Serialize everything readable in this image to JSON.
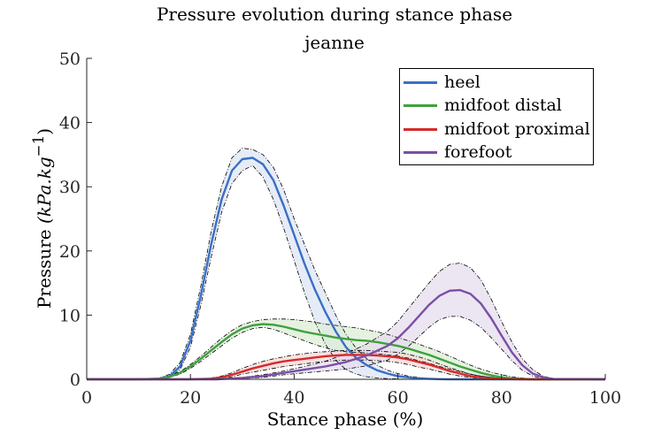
{
  "chart_data": {
    "type": "line",
    "title": "Pressure evolution during stance phase",
    "subtitle": "jeanne",
    "xlabel": "Stance phase (%)",
    "ylabel_text": "Pressure ",
    "ylabel_unit": "(kPa.kg",
    "ylabel_exp": "−1",
    "ylabel_close": ")",
    "xlim": [
      0,
      100
    ],
    "ylim": [
      0,
      50
    ],
    "xticks": [
      0,
      20,
      40,
      60,
      80,
      100
    ],
    "yticks": [
      0,
      10,
      20,
      30,
      40,
      50
    ],
    "grid": false,
    "legend_position": "top-right",
    "band_style": "shaded band with dash-dot bounds",
    "series": [
      {
        "name": "heel",
        "color": "#3a6fc4",
        "fill": "#dde6f4",
        "x": [
          0,
          10,
          14,
          16,
          18,
          20,
          22,
          24,
          26,
          28,
          30,
          32,
          34,
          36,
          38,
          40,
          42,
          44,
          46,
          48,
          50,
          52,
          54,
          56,
          58,
          60,
          62,
          64,
          66,
          68,
          70,
          75,
          100
        ],
        "mean": [
          0,
          0,
          0.1,
          0.5,
          2,
          6,
          13,
          21,
          28,
          32.5,
          34.3,
          34.5,
          33.5,
          31,
          27,
          22.5,
          18,
          14,
          10.5,
          7.5,
          5,
          3.3,
          2.2,
          1.4,
          0.9,
          0.5,
          0.3,
          0.15,
          0.08,
          0.03,
          0,
          0,
          0
        ],
        "upper": [
          0,
          0,
          0.2,
          0.8,
          2.6,
          7,
          14.5,
          23,
          30,
          34.5,
          36,
          35.8,
          35,
          33,
          29.5,
          25,
          21,
          17,
          13.5,
          10,
          7,
          4.8,
          3.2,
          2.2,
          1.4,
          0.9,
          0.5,
          0.3,
          0.15,
          0.08,
          0.03,
          0,
          0
        ],
        "lower": [
          0,
          0,
          0,
          0.3,
          1.5,
          5,
          11.5,
          19,
          26,
          30.5,
          32.5,
          33.3,
          31.5,
          28,
          23.5,
          18.5,
          13.5,
          9,
          5.5,
          3,
          1.5,
          0.8,
          0.4,
          0.2,
          0.1,
          0.05,
          0,
          0,
          0,
          0,
          0,
          0,
          0
        ]
      },
      {
        "name": "midfoot distal",
        "color": "#3fa03f",
        "fill": "#dcedd6",
        "x": [
          0,
          10,
          14,
          16,
          18,
          20,
          22,
          24,
          26,
          28,
          30,
          32,
          34,
          36,
          38,
          40,
          42,
          44,
          46,
          48,
          50,
          52,
          54,
          56,
          58,
          60,
          62,
          64,
          66,
          68,
          70,
          72,
          74,
          76,
          78,
          80,
          82,
          84,
          86,
          90,
          100
        ],
        "mean": [
          0,
          0,
          0.1,
          0.4,
          1,
          2,
          3.2,
          4.5,
          5.8,
          7,
          7.9,
          8.4,
          8.6,
          8.5,
          8.2,
          7.8,
          7.4,
          7.1,
          6.8,
          6.5,
          6.3,
          6.1,
          6,
          5.8,
          5.5,
          5.2,
          4.8,
          4.3,
          3.8,
          3.2,
          2.6,
          2,
          1.5,
          1,
          0.6,
          0.3,
          0.15,
          0.05,
          0,
          0,
          0
        ],
        "upper": [
          0,
          0,
          0.15,
          0.5,
          1.2,
          2.3,
          3.6,
          5,
          6.4,
          7.6,
          8.5,
          9,
          9.3,
          9.4,
          9.4,
          9.3,
          9.1,
          8.9,
          8.6,
          8.4,
          8.2,
          8,
          7.7,
          7.4,
          7,
          6.5,
          6,
          5.5,
          4.9,
          4.3,
          3.6,
          2.9,
          2.2,
          1.6,
          1.1,
          0.7,
          0.4,
          0.2,
          0.1,
          0,
          0
        ],
        "lower": [
          0,
          0,
          0.05,
          0.3,
          0.8,
          1.7,
          2.8,
          4,
          5.2,
          6.4,
          7.3,
          7.9,
          8.1,
          7.8,
          7.2,
          6.6,
          6,
          5.4,
          4.9,
          4.5,
          4.3,
          4.2,
          4.1,
          4,
          3.8,
          3.6,
          3.3,
          2.9,
          2.5,
          2,
          1.6,
          1.2,
          0.8,
          0.5,
          0.3,
          0.15,
          0.05,
          0,
          0,
          0,
          0
        ]
      },
      {
        "name": "midfoot proximal",
        "color": "#d42b2b",
        "fill": "#f7d7d7",
        "x": [
          0,
          20,
          24,
          26,
          28,
          30,
          32,
          34,
          36,
          38,
          40,
          42,
          44,
          46,
          48,
          50,
          52,
          54,
          56,
          58,
          60,
          62,
          64,
          66,
          68,
          70,
          72,
          74,
          76,
          78,
          80,
          84,
          100
        ],
        "mean": [
          0,
          0,
          0.1,
          0.3,
          0.7,
          1.2,
          1.7,
          2.1,
          2.5,
          2.8,
          3,
          3.2,
          3.4,
          3.6,
          3.7,
          3.8,
          3.8,
          3.8,
          3.7,
          3.6,
          3.4,
          3.1,
          2.7,
          2.3,
          1.8,
          1.3,
          0.9,
          0.5,
          0.3,
          0.15,
          0.05,
          0,
          0
        ],
        "upper": [
          0,
          0,
          0.2,
          0.5,
          1,
          1.7,
          2.3,
          2.8,
          3.2,
          3.5,
          3.8,
          4,
          4.2,
          4.3,
          4.4,
          4.5,
          4.5,
          4.5,
          4.4,
          4.3,
          4.2,
          3.9,
          3.5,
          3,
          2.4,
          1.8,
          1.3,
          0.8,
          0.5,
          0.3,
          0.1,
          0,
          0
        ],
        "lower": [
          0,
          0,
          0,
          0.1,
          0.4,
          0.8,
          1.1,
          1.4,
          1.7,
          2,
          2.2,
          2.4,
          2.6,
          2.8,
          2.9,
          3,
          3,
          3,
          2.9,
          2.8,
          2.6,
          2.3,
          1.9,
          1.6,
          1.2,
          0.8,
          0.5,
          0.3,
          0.15,
          0.05,
          0,
          0,
          0
        ]
      },
      {
        "name": "forefoot",
        "color": "#7b4fa6",
        "fill": "#e6dcee",
        "x": [
          0,
          25,
          30,
          34,
          38,
          42,
          46,
          50,
          54,
          58,
          60,
          62,
          64,
          66,
          68,
          70,
          72,
          74,
          76,
          78,
          80,
          82,
          84,
          86,
          88,
          90,
          100
        ],
        "mean": [
          0,
          0,
          0.2,
          0.5,
          1,
          1.5,
          2,
          2.7,
          3.7,
          5.2,
          6.4,
          8,
          9.8,
          11.6,
          13,
          13.8,
          13.9,
          13.3,
          11.8,
          9.5,
          6.8,
          4.2,
          2.2,
          0.9,
          0.3,
          0.05,
          0
        ],
        "upper": [
          0,
          0,
          0.3,
          0.7,
          1.3,
          2,
          2.8,
          4,
          5.5,
          7.5,
          9,
          11,
          13,
          15,
          16.8,
          17.9,
          18.1,
          17.4,
          15.5,
          12.5,
          9,
          5.8,
          3.2,
          1.5,
          0.5,
          0.1,
          0
        ],
        "lower": [
          0,
          0,
          0.1,
          0.3,
          0.7,
          1,
          1.3,
          1.6,
          2.1,
          3,
          3.9,
          5.1,
          6.6,
          8.1,
          9.3,
          9.8,
          9.8,
          9.2,
          8.1,
          6.5,
          4.7,
          2.9,
          1.4,
          0.5,
          0.1,
          0,
          0
        ]
      }
    ]
  }
}
